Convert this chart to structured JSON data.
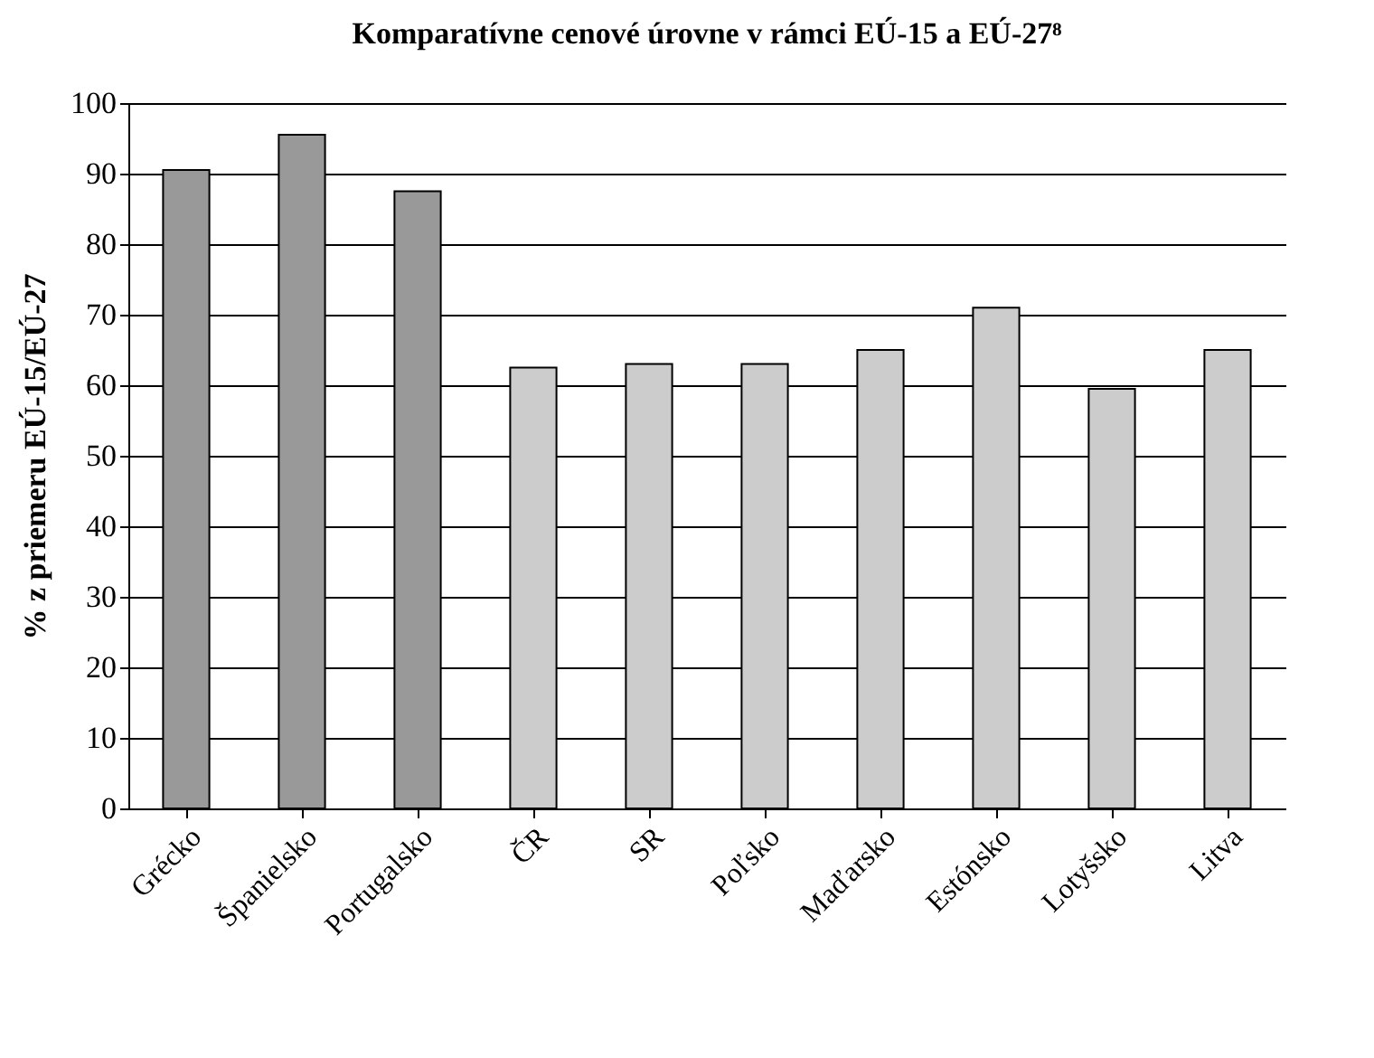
{
  "chart_data": {
    "type": "bar",
    "title": "Komparatívne cenové úrovne v rámci EÚ-15 a EÚ-27⁸",
    "ylabel": "% z priemeru EÚ-15/EÚ-27",
    "categories": [
      "Grécko",
      "Španielsko",
      "Portugalsko",
      "ČR",
      "SR",
      "Poľsko",
      "Maďarsko",
      "Estónsko",
      "Lotyšsko",
      "Litva"
    ],
    "values": [
      90.5,
      95.5,
      87.5,
      62.5,
      63,
      63,
      65,
      71,
      59.5,
      65
    ],
    "colors": [
      "#999999",
      "#999999",
      "#999999",
      "#cccccc",
      "#cccccc",
      "#cccccc",
      "#cccccc",
      "#cccccc",
      "#cccccc",
      "#cccccc"
    ],
    "ylim": [
      0,
      100
    ],
    "yticks": [
      0,
      10,
      20,
      30,
      40,
      50,
      60,
      70,
      80,
      90,
      100
    ],
    "grid": "y"
  }
}
